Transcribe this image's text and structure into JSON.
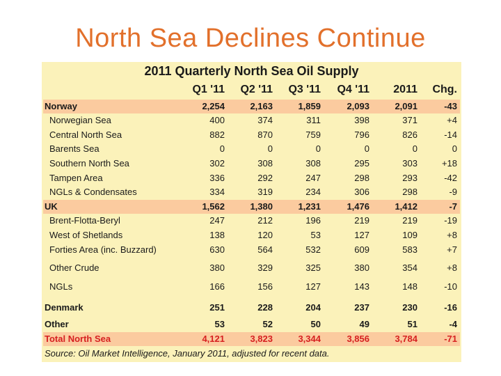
{
  "slide": {
    "title": "North Sea Declines Continue"
  },
  "table": {
    "title": "2011 Quarterly North Sea Oil Supply",
    "columns": [
      "Q1 '11",
      "Q2 '11",
      "Q3 '11",
      "Q4 '11",
      "2011",
      "Chg."
    ],
    "rows": [
      {
        "label": "Norway",
        "kind": "country",
        "values": [
          "2,254",
          "2,163",
          "1,859",
          "2,093",
          "2,091",
          "-43"
        ]
      },
      {
        "label": "Norwegian Sea",
        "kind": "sub",
        "values": [
          "400",
          "374",
          "311",
          "398",
          "371",
          "+4"
        ]
      },
      {
        "label": "Central North Sea",
        "kind": "sub",
        "values": [
          "882",
          "870",
          "759",
          "796",
          "826",
          "-14"
        ]
      },
      {
        "label": "Barents Sea",
        "kind": "sub",
        "values": [
          "0",
          "0",
          "0",
          "0",
          "0",
          "0"
        ]
      },
      {
        "label": "Southern North Sea",
        "kind": "sub",
        "values": [
          "302",
          "308",
          "308",
          "295",
          "303",
          "+18"
        ]
      },
      {
        "label": "Tampen Area",
        "kind": "sub",
        "values": [
          "336",
          "292",
          "247",
          "298",
          "293",
          "-42"
        ]
      },
      {
        "label": "NGLs & Condensates",
        "kind": "sub",
        "values": [
          "334",
          "319",
          "234",
          "306",
          "298",
          "-9"
        ]
      },
      {
        "label": "UK",
        "kind": "country",
        "values": [
          "1,562",
          "1,380",
          "1,231",
          "1,476",
          "1,412",
          "-7"
        ]
      },
      {
        "label": "Brent-Flotta-Beryl",
        "kind": "sub",
        "values": [
          "247",
          "212",
          "196",
          "219",
          "219",
          "-19"
        ]
      },
      {
        "label": "West of Shetlands",
        "kind": "sub",
        "values": [
          "138",
          "120",
          "53",
          "127",
          "109",
          "+8"
        ]
      },
      {
        "label": "Forties Area (inc. Buzzard)",
        "kind": "sub",
        "values": [
          "630",
          "564",
          "532",
          "609",
          "583",
          "+7"
        ]
      },
      {
        "label": "Other Crude",
        "kind": "sub",
        "values": [
          "380",
          "329",
          "325",
          "380",
          "354",
          "+8"
        ]
      },
      {
        "label": "NGLs",
        "kind": "sub",
        "values": [
          "166",
          "156",
          "127",
          "143",
          "148",
          "-10"
        ]
      },
      {
        "label": "Denmark",
        "kind": "other",
        "values": [
          "251",
          "228",
          "204",
          "237",
          "230",
          "-16"
        ]
      },
      {
        "label": "Other",
        "kind": "other",
        "values": [
          "53",
          "52",
          "50",
          "49",
          "51",
          "-4"
        ]
      },
      {
        "label": "Total North Sea",
        "kind": "total",
        "values": [
          "4,121",
          "3,823",
          "3,344",
          "3,856",
          "3,784",
          "-71"
        ]
      }
    ],
    "source": "Source: Oil Market Intelligence, January 2011, adjusted for recent data."
  },
  "colors": {
    "title": "#e2702b",
    "panel": "#fbf2ba",
    "highlight_row": "#fbcb9f",
    "total_text": "#d62020"
  }
}
